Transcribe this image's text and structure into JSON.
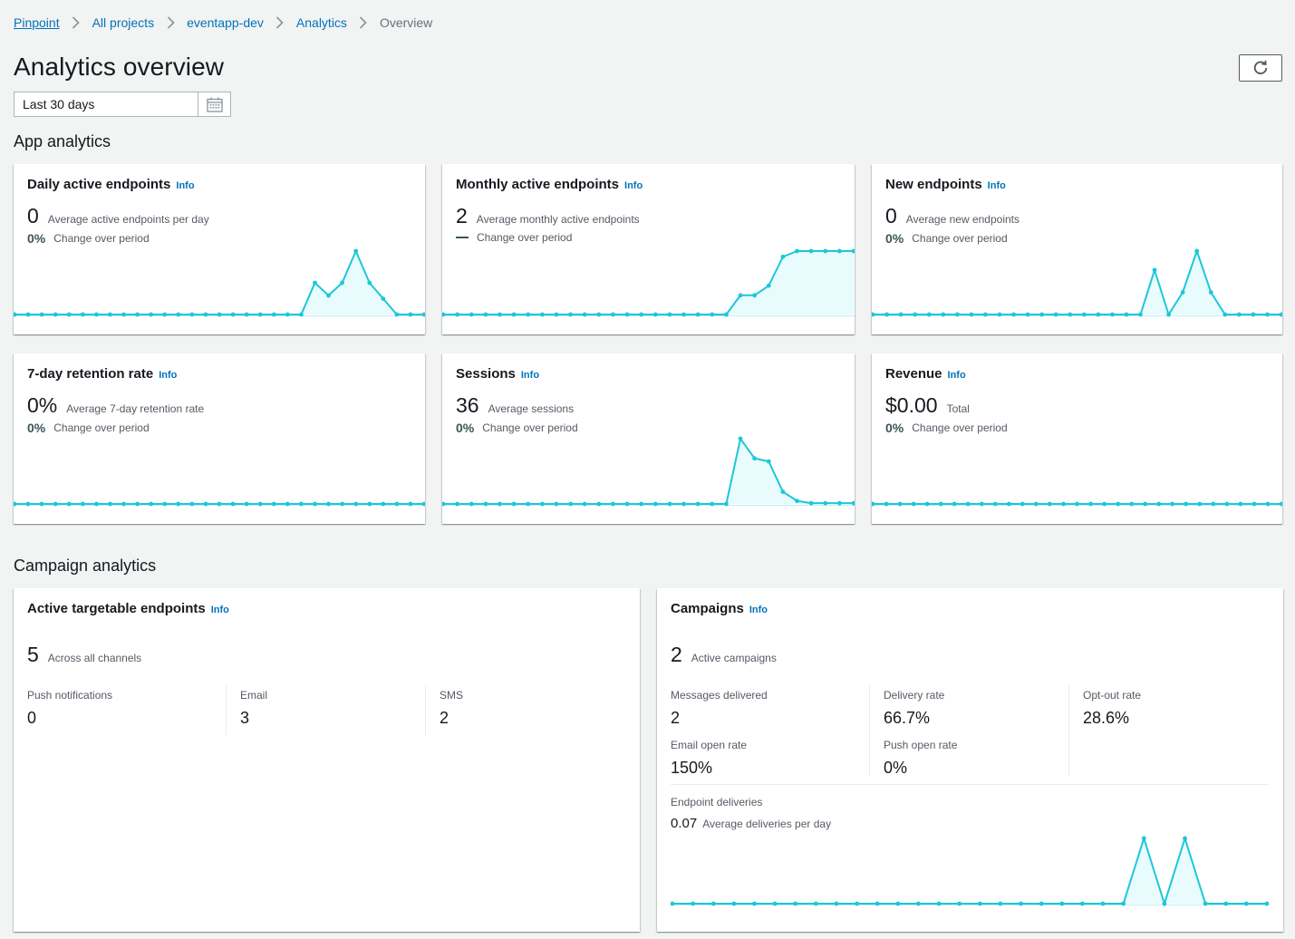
{
  "breadcrumb": [
    {
      "label": "Pinpoint",
      "current": false
    },
    {
      "label": "All projects",
      "current": false
    },
    {
      "label": "eventapp-dev",
      "current": false
    },
    {
      "label": "Analytics",
      "current": false
    },
    {
      "label": "Overview",
      "current": true
    }
  ],
  "page": {
    "title": "Analytics overview",
    "refresh_icon": "refresh-icon"
  },
  "date_range": {
    "value": "Last 30 days",
    "icon": "calendar-icon"
  },
  "colors": {
    "spark_line": "#1cc7d8",
    "spark_fill": "#e8fbfd",
    "link": "#0073bb"
  },
  "app_analytics": {
    "title": "App analytics",
    "cards": [
      {
        "title": "Daily active endpoints",
        "info": "Info",
        "value": "0",
        "desc": "Average active endpoints per day",
        "change": "0%",
        "change_label": "Change over period",
        "series": [
          0,
          0,
          0,
          0,
          0,
          0,
          0,
          0,
          0,
          0,
          0,
          0,
          0,
          0,
          0,
          0,
          0,
          0,
          0,
          0,
          0,
          0,
          1,
          0.6,
          1,
          2,
          1,
          0.5,
          0,
          0,
          0
        ]
      },
      {
        "title": "Monthly active endpoints",
        "info": "Info",
        "value": "2",
        "desc": "Average monthly active endpoints",
        "change": "",
        "change_label": "Change over period",
        "series": [
          0,
          0,
          0,
          0,
          0,
          0,
          0,
          0,
          0,
          0,
          0,
          0,
          0,
          0,
          0,
          0,
          0,
          0,
          0,
          0,
          0,
          1,
          1,
          1.5,
          3,
          3.3,
          3.3,
          3.3,
          3.3,
          3.3
        ]
      },
      {
        "title": "New endpoints",
        "info": "Info",
        "value": "0",
        "desc": "Average new endpoints",
        "change": "0%",
        "change_label": "Change over period",
        "series": [
          0,
          0,
          0,
          0,
          0,
          0,
          0,
          0,
          0,
          0,
          0,
          0,
          0,
          0,
          0,
          0,
          0,
          0,
          0,
          0,
          1.4,
          0,
          0.7,
          2,
          0.7,
          0,
          0,
          0,
          0,
          0
        ]
      },
      {
        "title": "7-day retention rate",
        "info": "Info",
        "value": "0%",
        "desc": "Average 7-day retention rate",
        "change": "0%",
        "change_label": "Change over period",
        "series": [
          0,
          0,
          0,
          0,
          0,
          0,
          0,
          0,
          0,
          0,
          0,
          0,
          0,
          0,
          0,
          0,
          0,
          0,
          0,
          0,
          0,
          0,
          0,
          0,
          0,
          0,
          0,
          0,
          0,
          0,
          0
        ]
      },
      {
        "title": "Sessions",
        "info": "Info",
        "value": "36",
        "desc": "Average sessions",
        "change": "0%",
        "change_label": "Change over period",
        "series": [
          0,
          0,
          0,
          0,
          0,
          0,
          0,
          0,
          0,
          0,
          0,
          0,
          0,
          0,
          0,
          0,
          0,
          0,
          0,
          0,
          0,
          4.3,
          3,
          2.8,
          0.8,
          0.2,
          0.05,
          0.05,
          0.05,
          0.05
        ]
      },
      {
        "title": "Revenue",
        "info": "Info",
        "value": "$0.00",
        "desc": "Total",
        "change": "0%",
        "change_label": "Change over period",
        "series": [
          0,
          0,
          0,
          0,
          0,
          0,
          0,
          0,
          0,
          0,
          0,
          0,
          0,
          0,
          0,
          0,
          0,
          0,
          0,
          0,
          0,
          0,
          0,
          0,
          0,
          0,
          0,
          0,
          0,
          0,
          0
        ]
      }
    ]
  },
  "campaign_analytics": {
    "title": "Campaign analytics",
    "endpoints": {
      "title": "Active targetable endpoints",
      "info": "Info",
      "value": "5",
      "desc": "Across all channels",
      "channels": [
        {
          "label": "Push notifications",
          "value": "0"
        },
        {
          "label": "Email",
          "value": "3"
        },
        {
          "label": "SMS",
          "value": "2"
        }
      ]
    },
    "campaigns": {
      "title": "Campaigns",
      "info": "Info",
      "value": "2",
      "desc": "Active campaigns",
      "stats": [
        {
          "label": "Messages delivered",
          "value": "2"
        },
        {
          "label": "Delivery rate",
          "value": "66.7%"
        },
        {
          "label": "Opt-out rate",
          "value": "28.6%"
        },
        {
          "label": "Email open rate",
          "value": "150%"
        },
        {
          "label": "Push open rate",
          "value": "0%"
        }
      ],
      "deliveries": {
        "label": "Endpoint deliveries",
        "value": "0.07",
        "desc": "Average deliveries per day",
        "series": [
          0,
          0,
          0,
          0,
          0,
          0,
          0,
          0,
          0,
          0,
          0,
          0,
          0,
          0,
          0,
          0,
          0,
          0,
          0,
          0,
          0,
          0,
          0,
          1,
          0,
          1,
          0,
          0,
          0,
          0
        ]
      }
    }
  }
}
